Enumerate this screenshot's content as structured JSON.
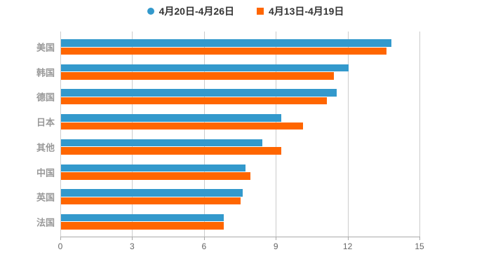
{
  "chart_data": {
    "type": "bar",
    "orientation": "horizontal",
    "categories": [
      "美国",
      "韩国",
      "德国",
      "日本",
      "其他",
      "中国",
      "英国",
      "法国"
    ],
    "series": [
      {
        "name": "4月20日-4月26日",
        "color": "#3399CC",
        "marker": "circle-icon",
        "values": [
          13.8,
          12.0,
          11.5,
          9.2,
          8.4,
          7.7,
          7.6,
          6.8
        ]
      },
      {
        "name": "4月13日-4月19日",
        "color": "#FF6600",
        "marker": "square-icon",
        "values": [
          13.6,
          11.4,
          11.1,
          10.1,
          9.2,
          7.9,
          7.5,
          6.8
        ]
      }
    ],
    "xlim": [
      0,
      15
    ],
    "xticks": [
      "0",
      "3",
      "6",
      "9",
      "12",
      "15"
    ],
    "grid": true,
    "legend_position": "top",
    "colors": {
      "background": "#FFFFFF",
      "gridline": "#CCCCCC",
      "axis_line": "#AAAAAA",
      "tick_label": "#666666",
      "category_label": "#999999",
      "legend_text": "#333333"
    }
  }
}
